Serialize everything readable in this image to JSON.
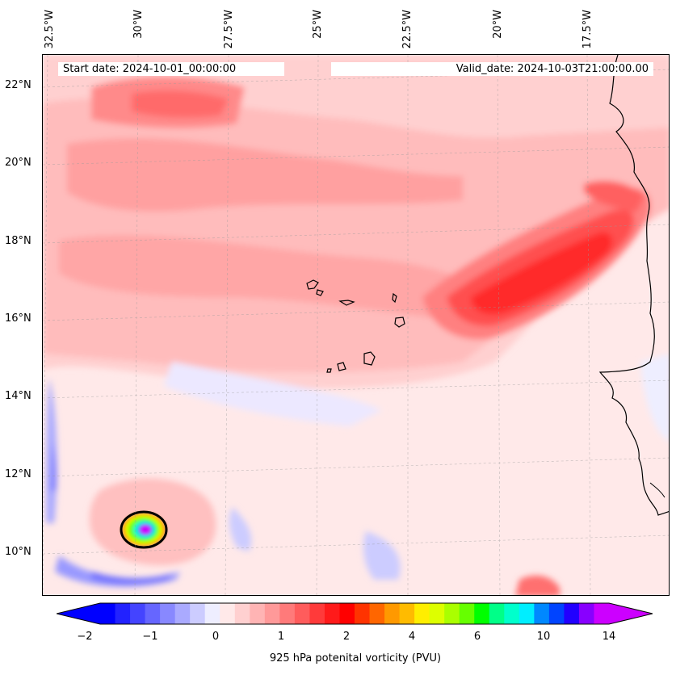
{
  "map": {
    "start_label": "Start date: 2024-10-01_00:00:00",
    "valid_label": "Valid_date: 2024-10-03T21:00:00.00",
    "lon_labels": [
      "32.5°W",
      "30°W",
      "27.5°W",
      "25°W",
      "22.5°W",
      "20°W",
      "17.5°W"
    ],
    "lat_labels": [
      "22°N",
      "20°N",
      "18°N",
      "16°N",
      "14°N",
      "12°N",
      "10°N"
    ],
    "variable": "925 hPa potenital vorticity (PVU)"
  },
  "colorbar": {
    "tick_labels": [
      "−2",
      "−1",
      "0",
      "1",
      "2",
      "4",
      "6",
      "10",
      "14"
    ],
    "colors": [
      "#0000ff",
      "#2222ff",
      "#4444ff",
      "#6666ff",
      "#8888ff",
      "#aaaaff",
      "#ccccff",
      "#eeeeff",
      "#ffe9e9",
      "#ffd0d0",
      "#ffb4b4",
      "#ff9999",
      "#ff7a7a",
      "#ff5c5c",
      "#ff3a3a",
      "#ff1a1a",
      "#ff0000",
      "#ff3300",
      "#ff6600",
      "#ff9900",
      "#ffbb00",
      "#ffee00",
      "#ddff00",
      "#aaff00",
      "#66ff00",
      "#00ff00",
      "#00ff88",
      "#00ffcc",
      "#00eeff",
      "#0088ff",
      "#0044ff",
      "#2200ff",
      "#8800ff",
      "#cc00ff"
    ],
    "extend_min_color": "#0000ff",
    "extend_max_color": "#cc00ff"
  }
}
